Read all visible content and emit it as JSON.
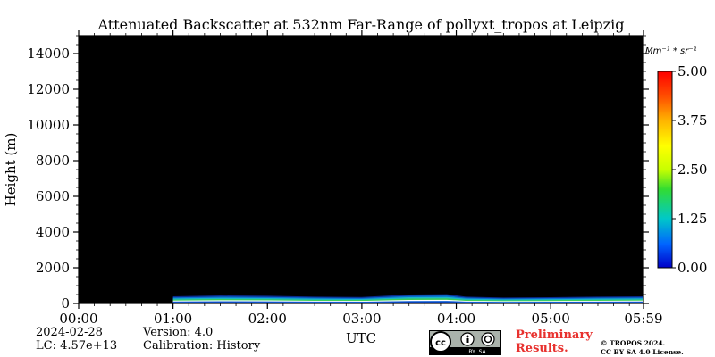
{
  "chart_data": {
    "type": "heatmap",
    "title": "Attenuated Backscatter at 532nm Far-Range of pollyxt_tropos at Leipzig",
    "xlabel": "UTC",
    "ylabel": "Height (m)",
    "x_ticks": [
      "00:00",
      "01:00",
      "02:00",
      "03:00",
      "04:00",
      "05:00",
      "05:59"
    ],
    "x_tick_hours": [
      0,
      1,
      2,
      3,
      4,
      5,
      5.983
    ],
    "xlim_hours": [
      0,
      5.983
    ],
    "y_ticks": [
      0,
      2000,
      4000,
      6000,
      8000,
      10000,
      12000,
      14000
    ],
    "ylim": [
      0,
      15000
    ],
    "colorbar": {
      "unit_label": "Mm⁻¹ * sr⁻¹",
      "ticks": [
        "0.00",
        "1.25",
        "2.50",
        "3.75",
        "5.00"
      ],
      "range": [
        0,
        5
      ],
      "colormap": [
        "#0000c8",
        "#0064ff",
        "#00c8c8",
        "#32dc32",
        "#c8ff00",
        "#ffff00",
        "#ffb400",
        "#ff5000",
        "#ff0000"
      ]
    },
    "background_color": "#000000",
    "data_start_hour": 1.0,
    "signal_layer": {
      "description_height_top_m": [
        [
          1.0,
          400
        ],
        [
          1.5,
          450
        ],
        [
          2.0,
          430
        ],
        [
          2.5,
          380
        ],
        [
          3.0,
          360
        ],
        [
          3.5,
          500
        ],
        [
          3.9,
          520
        ],
        [
          4.1,
          380
        ],
        [
          4.5,
          330
        ],
        [
          5.0,
          350
        ],
        [
          5.5,
          380
        ],
        [
          5.983,
          400
        ]
      ]
    }
  },
  "footer": {
    "date": "2024-02-28",
    "lc": "LC: 4.57e+13",
    "version": "Version: 4.0",
    "calibration": "Calibration: History",
    "preliminary_line1": "Preliminary",
    "preliminary_line2": "Results.",
    "copyright_line1": "© TROPOS 2024.",
    "copyright_line2": "CC BY SA 4.0 License.",
    "badge_text": "BY  SA"
  }
}
